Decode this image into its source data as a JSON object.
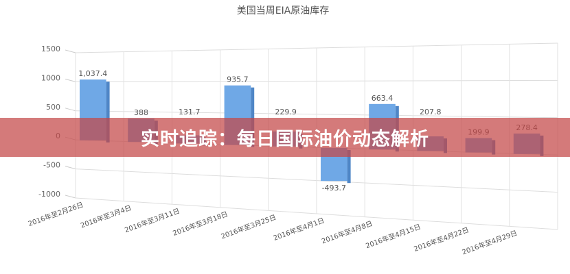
{
  "chart_data": {
    "type": "bar",
    "title": "美国当周EIA原油库存",
    "categories": [
      "2016年至2月26日",
      "2016年至3月4日",
      "2016年至3月11日",
      "2016年至3月18日",
      "2016年至3月25日",
      "2016年至4月1日",
      "2016年至4月8日",
      "2016年至4月15日",
      "2016年至4月22日",
      "2016年至4月29日"
    ],
    "values": [
      1037.4,
      388,
      131.7,
      935.7,
      229.9,
      -493.7,
      663.4,
      207.8,
      199.9,
      278.4
    ],
    "data_labels": [
      "1,037.4",
      "388",
      "131.7",
      "935.7",
      "229.9",
      "-493.7",
      "663.4",
      "207.8",
      "199.9",
      "278.4"
    ],
    "yticks": [
      "1500",
      "1000",
      "500",
      "0",
      "-500",
      "-1000"
    ],
    "ylim": [
      -1000,
      1500
    ],
    "grid": true,
    "style": "3d",
    "bar_color": "#6fa8e6"
  },
  "banner": {
    "text": "实时追踪：每日国际油价动态解析",
    "color": "#c44646"
  }
}
